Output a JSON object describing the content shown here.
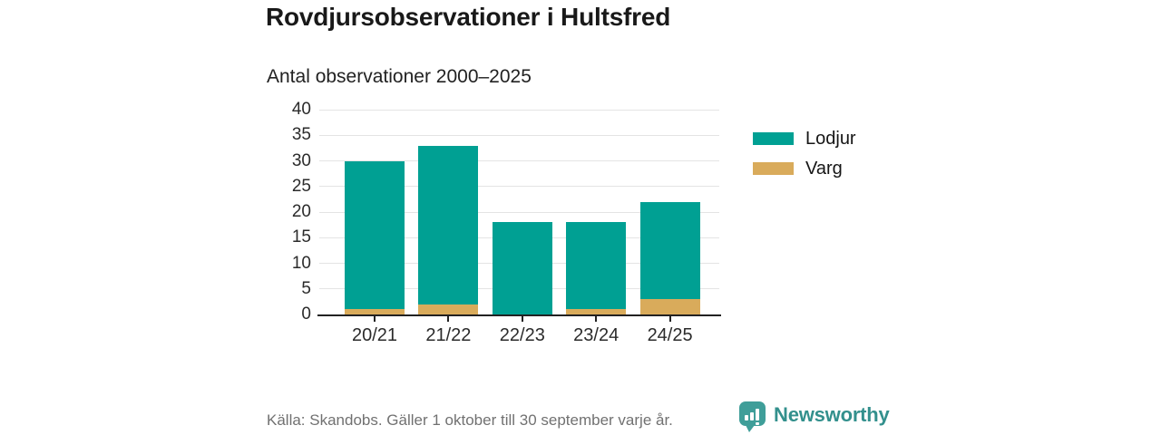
{
  "title": "Rovdjursobservationer i Hultsfred",
  "subtitle": "Antal observationer 2000–2025",
  "source": "Källa: Skandobs. Gäller 1 oktober till 30 september varje år.",
  "branding": {
    "label": "Newsworthy",
    "icon": "speech-bubble-bar-chart-icon"
  },
  "colors": {
    "lodjur": "#00a093",
    "varg": "#d9ab5b",
    "gridline": "#e4e4e4",
    "axis": "#222222",
    "brand_badge": "#3f9e99",
    "brand_text": "#33908d",
    "source_text": "#717171",
    "text": "#1a1a1a"
  },
  "chart_data": {
    "type": "bar",
    "stacked": true,
    "title": "Rovdjursobservationer i Hultsfred",
    "subtitle": "Antal observationer 2000–2025",
    "categories": [
      "20/21",
      "21/22",
      "22/23",
      "23/24",
      "24/25"
    ],
    "series": [
      {
        "name": "Lodjur",
        "color_key": "lodjur",
        "values": [
          29,
          31,
          18,
          17,
          19
        ]
      },
      {
        "name": "Varg",
        "color_key": "varg",
        "values": [
          1,
          2,
          0,
          1,
          3
        ]
      }
    ],
    "totals": [
      30,
      33,
      18,
      18,
      22
    ],
    "y_ticks": [
      0,
      5,
      10,
      15,
      20,
      25,
      30,
      35,
      40
    ],
    "ylim": [
      0,
      40
    ],
    "xlabel": "",
    "ylabel": "",
    "grid": "horizontal",
    "legend_position": "right"
  }
}
